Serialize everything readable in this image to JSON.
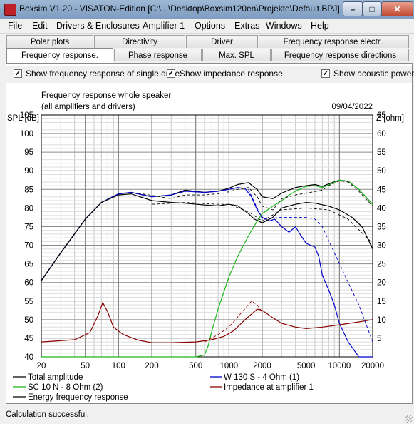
{
  "window": {
    "title": "Boxsim V1.20 - VISATON-Edition [C:\\...\\Desktop\\Boxsim120en\\Projekte\\Default.BPJ]",
    "minimize": "–",
    "maximize": "□",
    "close": "✕"
  },
  "menu": [
    "File",
    "Edit",
    "Drivers & Enclosures",
    "Amplifier 1",
    "Options",
    "Extras",
    "Windows",
    "Help"
  ],
  "tabs": {
    "row1": [
      "Polar plots",
      "Directivity",
      "Driver",
      "Frequency response electr.."
    ],
    "row2": [
      "Frequency response.",
      "Phase response",
      "Max. SPL",
      "Frequency response directions"
    ],
    "active": "Frequency response."
  },
  "options": [
    {
      "label": "Show frequency response of single drive",
      "checked": true
    },
    {
      "label": "Show impedance response",
      "checked": true
    },
    {
      "label": "Show acoustic power",
      "checked": true
    }
  ],
  "check_mark": "✓",
  "status": "Calculation successful.",
  "colors": {
    "total": "#000000",
    "woofer": "#0000c8",
    "tweeter": "#18b818",
    "impedance": "#8a0000",
    "energy": "#000000"
  },
  "chart_data": {
    "type": "line",
    "title": "Frequency response whole speaker",
    "subtitle": "(all amplifiers and drivers)",
    "date": "09/04/2022",
    "xlabel": "",
    "ylabel": "SPL [dB]",
    "y2label": "Z [ohm]",
    "xscale": "log",
    "xlim": [
      20,
      20000
    ],
    "ylim": [
      40,
      105
    ],
    "y2lim": [
      0,
      65
    ],
    "x_ticks": [
      20,
      50,
      100,
      200,
      500,
      1000,
      2000,
      5000,
      10000,
      20000
    ],
    "x_tick_labels": [
      "20",
      "50",
      "100",
      "200",
      "500",
      "1000",
      "2000",
      "5000",
      "10000",
      "20000"
    ],
    "y_ticks": [
      40,
      45,
      50,
      55,
      60,
      65,
      70,
      75,
      80,
      85,
      90,
      95,
      100,
      105
    ],
    "y2_ticks": [
      5,
      10,
      15,
      20,
      25,
      30,
      35,
      40,
      45,
      50,
      55,
      60,
      65
    ],
    "grid": true,
    "series": [
      {
        "name": "Total amplitude",
        "color_key": "total",
        "dashed": false,
        "points": [
          [
            20,
            60.5
          ],
          [
            30,
            68
          ],
          [
            50,
            77
          ],
          [
            70,
            81.5
          ],
          [
            100,
            83.8
          ],
          [
            130,
            84.2
          ],
          [
            200,
            83
          ],
          [
            300,
            83.5
          ],
          [
            400,
            84.8
          ],
          [
            600,
            84.2
          ],
          [
            800,
            84.5
          ],
          [
            1000,
            85.3
          ],
          [
            1200,
            86.3
          ],
          [
            1500,
            86.8
          ],
          [
            1800,
            85
          ],
          [
            2000,
            83
          ],
          [
            2500,
            82.5
          ],
          [
            3000,
            84
          ],
          [
            4000,
            85.5
          ],
          [
            5000,
            86
          ],
          [
            6000,
            86.3
          ],
          [
            7000,
            85.8
          ],
          [
            8000,
            86.5
          ],
          [
            10000,
            87.5
          ],
          [
            12000,
            87.2
          ],
          [
            15000,
            85
          ],
          [
            20000,
            81
          ]
        ]
      },
      {
        "name": "W 130 S - 4 Ohm (1)",
        "color_key": "woofer",
        "dashed": false,
        "points": [
          [
            20,
            60.5
          ],
          [
            30,
            68
          ],
          [
            50,
            77
          ],
          [
            70,
            81.5
          ],
          [
            100,
            83.8
          ],
          [
            130,
            84.2
          ],
          [
            200,
            83
          ],
          [
            300,
            83.5
          ],
          [
            400,
            84.5
          ],
          [
            600,
            84.2
          ],
          [
            800,
            84.5
          ],
          [
            1000,
            85
          ],
          [
            1200,
            85.5
          ],
          [
            1400,
            85.2
          ],
          [
            1600,
            83
          ],
          [
            1800,
            79.5
          ],
          [
            2000,
            77.5
          ],
          [
            2300,
            76.5
          ],
          [
            2600,
            77
          ],
          [
            3000,
            75
          ],
          [
            3500,
            73.5
          ],
          [
            4000,
            75
          ],
          [
            4500,
            72.5
          ],
          [
            5000,
            70.5
          ],
          [
            6000,
            69.5
          ],
          [
            6500,
            67
          ],
          [
            7000,
            62
          ],
          [
            8000,
            58
          ],
          [
            9000,
            54
          ],
          [
            10000,
            49
          ],
          [
            12000,
            44
          ],
          [
            15000,
            40
          ],
          [
            20000,
            40
          ]
        ]
      },
      {
        "name": "SC 10 N - 8 Ohm (2)",
        "color_key": "tweeter",
        "dashed": false,
        "points": [
          [
            20,
            40
          ],
          [
            500,
            40
          ],
          [
            600,
            40.5
          ],
          [
            650,
            43
          ],
          [
            700,
            47
          ],
          [
            800,
            53
          ],
          [
            900,
            57.5
          ],
          [
            1000,
            61.5
          ],
          [
            1200,
            67
          ],
          [
            1500,
            72.5
          ],
          [
            1800,
            76.5
          ],
          [
            2000,
            78.5
          ],
          [
            2500,
            80.5
          ],
          [
            3000,
            82
          ],
          [
            3500,
            83.5
          ],
          [
            4000,
            84.5
          ],
          [
            5000,
            85.8
          ],
          [
            6000,
            86
          ],
          [
            7000,
            85.5
          ],
          [
            8000,
            86.2
          ],
          [
            10000,
            87.5
          ],
          [
            12000,
            87.2
          ],
          [
            15000,
            85
          ],
          [
            20000,
            81
          ]
        ]
      },
      {
        "name": "Impedance at amplifier 1",
        "color_key": "impedance",
        "dashed": false,
        "axis": "y2",
        "points": [
          [
            20,
            4
          ],
          [
            40,
            4.6
          ],
          [
            55,
            6.5
          ],
          [
            65,
            11
          ],
          [
            72,
            14.6
          ],
          [
            80,
            12
          ],
          [
            90,
            8
          ],
          [
            110,
            6
          ],
          [
            150,
            4.5
          ],
          [
            200,
            3.8
          ],
          [
            300,
            3.8
          ],
          [
            500,
            4
          ],
          [
            700,
            4.6
          ],
          [
            900,
            5.5
          ],
          [
            1100,
            7
          ],
          [
            1400,
            10
          ],
          [
            1800,
            12.8
          ],
          [
            2000,
            12.5
          ],
          [
            2500,
            10.5
          ],
          [
            3000,
            9
          ],
          [
            4000,
            8
          ],
          [
            5000,
            7.6
          ],
          [
            7000,
            8
          ],
          [
            10000,
            8.6
          ],
          [
            15000,
            9.4
          ],
          [
            20000,
            10
          ]
        ]
      },
      {
        "name": "Energy frequency response",
        "color_key": "energy",
        "dashed": false,
        "points": [
          [
            20,
            60.5
          ],
          [
            30,
            68
          ],
          [
            50,
            77
          ],
          [
            70,
            81.5
          ],
          [
            100,
            83.5
          ],
          [
            130,
            83.8
          ],
          [
            200,
            82
          ],
          [
            300,
            81.5
          ],
          [
            400,
            81.3
          ],
          [
            600,
            80.8
          ],
          [
            800,
            80.6
          ],
          [
            1000,
            81
          ],
          [
            1200,
            80.6
          ],
          [
            1500,
            78.5
          ],
          [
            1700,
            77
          ],
          [
            2000,
            76
          ],
          [
            2500,
            77.5
          ],
          [
            3000,
            80
          ],
          [
            4000,
            81
          ],
          [
            5000,
            81.5
          ],
          [
            6000,
            81.3
          ],
          [
            8000,
            80.5
          ],
          [
            10000,
            79.5
          ],
          [
            13000,
            77.5
          ],
          [
            16000,
            75
          ],
          [
            20000,
            69
          ]
        ]
      },
      {
        "name": "",
        "color_key": "total",
        "dashed": true,
        "points": [
          [
            150,
            84
          ],
          [
            300,
            82.5
          ],
          [
            400,
            83.5
          ],
          [
            600,
            83.5
          ],
          [
            900,
            84
          ],
          [
            1200,
            85
          ],
          [
            1500,
            85.5
          ],
          [
            1800,
            83
          ],
          [
            2000,
            80.5
          ],
          [
            2500,
            79.5
          ],
          [
            3000,
            82.5
          ],
          [
            4000,
            83.5
          ],
          [
            5000,
            84
          ],
          [
            7000,
            84.8
          ],
          [
            8000,
            86
          ],
          [
            10000,
            87.3
          ],
          [
            12000,
            87
          ],
          [
            15000,
            84.5
          ],
          [
            20000,
            80.5
          ]
        ]
      },
      {
        "name": "",
        "color_key": "woofer",
        "dashed": true,
        "points": [
          [
            1500,
            85
          ],
          [
            2000,
            77
          ],
          [
            3000,
            77.5
          ],
          [
            5000,
            77.5
          ],
          [
            6000,
            77
          ],
          [
            7000,
            75
          ],
          [
            9000,
            68
          ],
          [
            12000,
            60
          ],
          [
            15000,
            54
          ],
          [
            20000,
            44
          ]
        ]
      },
      {
        "name": "",
        "color_key": "impedance",
        "dashed": true,
        "axis": "y2",
        "points": [
          [
            600,
            4
          ],
          [
            800,
            6
          ],
          [
            1000,
            8
          ],
          [
            1400,
            13
          ],
          [
            1600,
            15
          ],
          [
            1800,
            14
          ],
          [
            2000,
            12
          ]
        ]
      },
      {
        "name": "",
        "color_key": "energy",
        "dashed": true,
        "points": [
          [
            200,
            81
          ],
          [
            400,
            81.5
          ],
          [
            800,
            81
          ],
          [
            1000,
            81
          ],
          [
            1500,
            79
          ],
          [
            2000,
            76.5
          ],
          [
            3000,
            79.5
          ],
          [
            5000,
            80
          ],
          [
            8000,
            79.5
          ],
          [
            12000,
            77
          ],
          [
            20000,
            70.5
          ]
        ]
      }
    ]
  }
}
